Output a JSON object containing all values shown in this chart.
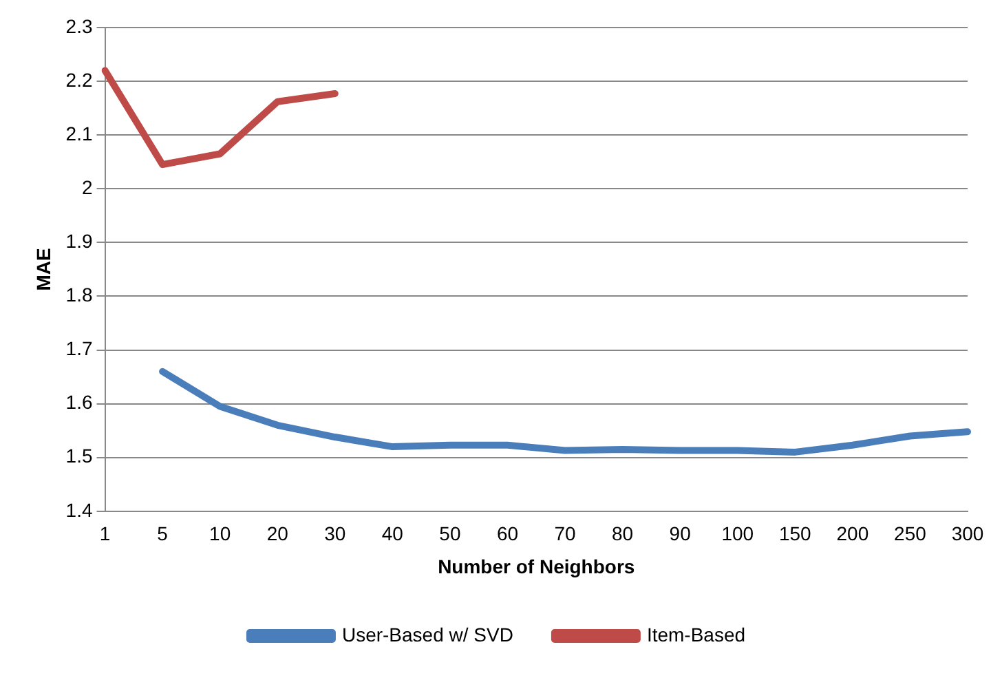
{
  "chart_data": {
    "type": "line",
    "xlabel": "Number of Neighbors",
    "ylabel": "MAE",
    "categories": [
      "1",
      "5",
      "10",
      "20",
      "30",
      "40",
      "50",
      "60",
      "70",
      "80",
      "90",
      "100",
      "150",
      "200",
      "250",
      "300"
    ],
    "series": [
      {
        "name": "User-Based w/ SVD",
        "color": "#4a7ebb",
        "values": [
          null,
          1.66,
          1.595,
          1.56,
          1.538,
          1.52,
          1.523,
          1.523,
          1.513,
          1.515,
          1.513,
          1.513,
          1.51,
          1.523,
          1.54,
          1.548
        ]
      },
      {
        "name": "Item-Based",
        "color": "#be4b48",
        "values": [
          2.22,
          2.045,
          2.065,
          2.162,
          2.177,
          null,
          null,
          null,
          null,
          null,
          null,
          null,
          null,
          null,
          null,
          null
        ]
      }
    ],
    "ylim": [
      1.4,
      2.3
    ],
    "yticks": [
      1.4,
      1.5,
      1.6,
      1.7,
      1.8,
      1.9,
      {
        "value": 2,
        "label": "2"
      },
      2.1,
      2.2,
      2.3
    ],
    "grid": "y",
    "legend": "bottom",
    "marker": "none",
    "line_style": "solid"
  }
}
